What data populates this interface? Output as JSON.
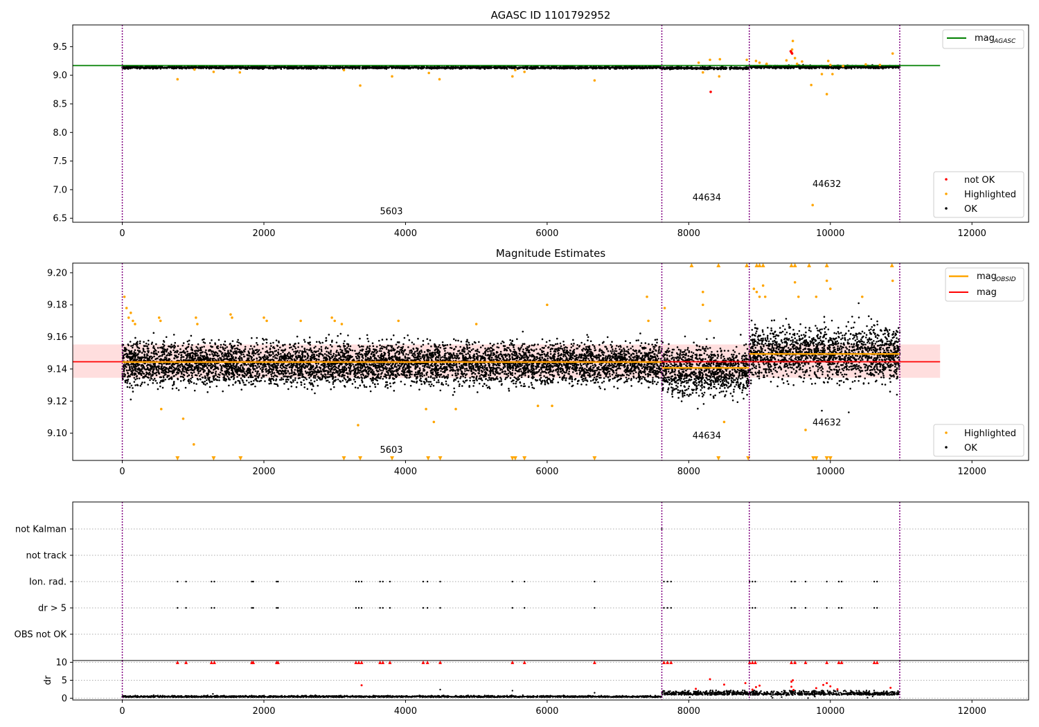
{
  "chart_data": [
    {
      "type": "scatter",
      "title": "AGASC ID 1101792952",
      "xlabel": "",
      "ylabel": "",
      "xlim": [
        -700,
        12800
      ],
      "ylim": [
        6.43,
        9.88
      ],
      "xticks": [
        0,
        2000,
        4000,
        6000,
        8000,
        10000,
        12000
      ],
      "xtick_labels": [
        "0",
        "2000",
        "4000",
        "6000",
        "8000",
        "10000",
        "12000"
      ],
      "yticks": [
        6.5,
        7.0,
        7.5,
        8.0,
        8.5,
        9.0,
        9.5
      ],
      "ytick_labels": [
        "6.5",
        "7.0",
        "7.5",
        "8.0",
        "8.5",
        "9.0",
        "9.5"
      ],
      "grid": false,
      "obsid_boundaries": [
        0,
        7620,
        8855,
        10980
      ],
      "obsid_labels": [
        {
          "text": "5603",
          "x": 3800,
          "y": 6.57
        },
        {
          "text": "44634",
          "x": 8255,
          "y": 6.81
        },
        {
          "text": "44632",
          "x": 9950,
          "y": 7.05
        }
      ],
      "hlines": [
        {
          "name": "magAGASC",
          "y": 9.17,
          "x": [
            -700,
            11550
          ],
          "color": "#008000"
        }
      ],
      "ok_band": {
        "segments": [
          {
            "x0": 0,
            "x1": 7620,
            "y": 9.135,
            "jitter": 0.02
          },
          {
            "x0": 7620,
            "x1": 8855,
            "y": 9.125,
            "jitter": 0.02
          },
          {
            "x0": 8855,
            "x1": 10980,
            "y": 9.145,
            "jitter": 0.025
          }
        ]
      },
      "series": [
        {
          "name": "not OK",
          "color": "#ff0000",
          "points": [
            [
              8310,
              8.71
            ],
            [
              9440,
              9.42
            ],
            [
              9460,
              9.38
            ],
            [
              9450,
              9.4
            ]
          ]
        },
        {
          "name": "Highlighted",
          "color": "#ffa500",
          "points": [
            [
              780,
              8.93
            ],
            [
              1020,
              9.1
            ],
            [
              1290,
              9.06
            ],
            [
              1660,
              9.05
            ],
            [
              3130,
              9.09
            ],
            [
              3360,
              8.82
            ],
            [
              3810,
              8.98
            ],
            [
              4330,
              9.04
            ],
            [
              4480,
              8.93
            ],
            [
              5510,
              8.98
            ],
            [
              5550,
              9.09
            ],
            [
              5680,
              9.06
            ],
            [
              6670,
              8.91
            ],
            [
              8140,
              9.22
            ],
            [
              8200,
              9.05
            ],
            [
              8300,
              9.27
            ],
            [
              8440,
              9.28
            ],
            [
              8430,
              8.98
            ],
            [
              8820,
              9.27
            ],
            [
              8950,
              9.25
            ],
            [
              9000,
              9.22
            ],
            [
              9100,
              9.2
            ],
            [
              9380,
              9.26
            ],
            [
              9470,
              9.6
            ],
            [
              9460,
              9.45
            ],
            [
              9500,
              9.3
            ],
            [
              9530,
              9.2
            ],
            [
              9600,
              9.24
            ],
            [
              9730,
              8.83
            ],
            [
              9750,
              6.73
            ],
            [
              9880,
              9.02
            ],
            [
              9950,
              8.67
            ],
            [
              9970,
              9.25
            ],
            [
              10000,
              9.18
            ],
            [
              10030,
              9.02
            ],
            [
              10180,
              9.16
            ],
            [
              10880,
              9.38
            ],
            [
              10500,
              9.19
            ],
            [
              10700,
              9.18
            ]
          ]
        },
        {
          "name": "OK",
          "color": "#000000",
          "points": []
        }
      ],
      "legend_upper": {
        "position": "upper right",
        "label_main": "mag",
        "label_sub": "AGASC"
      },
      "legend_lower": {
        "position": "lower right",
        "labels": [
          "not OK",
          "Highlighted",
          "OK"
        ]
      }
    },
    {
      "type": "scatter",
      "title": "Magnitude Estimates",
      "xlabel": "",
      "ylabel": "",
      "xlim": [
        -700,
        12800
      ],
      "ylim": [
        9.083,
        9.206
      ],
      "xticks": [
        0,
        2000,
        4000,
        6000,
        8000,
        10000,
        12000
      ],
      "xtick_labels": [
        "0",
        "2000",
        "4000",
        "6000",
        "8000",
        "10000",
        "12000"
      ],
      "yticks": [
        9.1,
        9.12,
        9.14,
        9.16,
        9.18,
        9.2
      ],
      "ytick_labels": [
        "9.10",
        "9.12",
        "9.14",
        "9.16",
        "9.18",
        "9.20"
      ],
      "grid": false,
      "obsid_boundaries": [
        0,
        7620,
        8855,
        10980
      ],
      "obsid_labels": [
        {
          "text": "5603",
          "x": 3800,
          "y": 9.0878
        },
        {
          "text": "44634",
          "x": 8255,
          "y": 9.0965
        },
        {
          "text": "44632",
          "x": 9950,
          "y": 9.1048
        }
      ],
      "mag": {
        "value": 9.1445,
        "x": [
          -700,
          11550
        ],
        "color": "#ff0000",
        "band": [
          9.1345,
          9.1553
        ]
      },
      "mag_obsid": [
        {
          "x0": 0,
          "x1": 7620,
          "y": 9.1443
        },
        {
          "x0": 7620,
          "x1": 8855,
          "y": 9.1407
        },
        {
          "x0": 8855,
          "x1": 10980,
          "y": 9.1494
        }
      ],
      "ok_band": {
        "segments": [
          {
            "x0": 0,
            "x1": 7620,
            "y": 9.1435,
            "jitter": 0.013
          },
          {
            "x0": 7620,
            "x1": 8855,
            "y": 9.139,
            "jitter": 0.015
          },
          {
            "x0": 8855,
            "x1": 10980,
            "y": 9.15,
            "jitter": 0.016
          }
        ]
      },
      "series": [
        {
          "name": "Highlighted",
          "color": "#ffa500",
          "points": [
            [
              30,
              9.185
            ],
            [
              60,
              9.178
            ],
            [
              90,
              9.172
            ],
            [
              120,
              9.175
            ],
            [
              150,
              9.17
            ],
            [
              180,
              9.168
            ],
            [
              520,
              9.172
            ],
            [
              540,
              9.17
            ],
            [
              550,
              9.115
            ],
            [
              860,
              9.109
            ],
            [
              1010,
              9.093
            ],
            [
              1040,
              9.172
            ],
            [
              1060,
              9.168
            ],
            [
              1530,
              9.174
            ],
            [
              1550,
              9.172
            ],
            [
              2000,
              9.172
            ],
            [
              2040,
              9.17
            ],
            [
              2520,
              9.17
            ],
            [
              2960,
              9.172
            ],
            [
              3000,
              9.17
            ],
            [
              3100,
              9.168
            ],
            [
              3330,
              9.105
            ],
            [
              3900,
              9.17
            ],
            [
              4290,
              9.115
            ],
            [
              4400,
              9.107
            ],
            [
              4710,
              9.115
            ],
            [
              5000,
              9.168
            ],
            [
              5870,
              9.117
            ],
            [
              6000,
              9.18
            ],
            [
              6070,
              9.117
            ],
            [
              7410,
              9.185
            ],
            [
              7430,
              9.17
            ],
            [
              7660,
              9.178
            ],
            [
              8200,
              9.188
            ],
            [
              8200,
              9.18
            ],
            [
              8300,
              9.17
            ],
            [
              8500,
              9.107
            ],
            [
              8920,
              9.19
            ],
            [
              8960,
              9.188
            ],
            [
              9000,
              9.185
            ],
            [
              9050,
              9.192
            ],
            [
              9080,
              9.185
            ],
            [
              9500,
              9.194
            ],
            [
              9550,
              9.185
            ],
            [
              9650,
              9.102
            ],
            [
              9800,
              9.185
            ],
            [
              9950,
              9.195
            ],
            [
              10000,
              9.19
            ],
            [
              10450,
              9.185
            ],
            [
              10880,
              9.195
            ]
          ]
        },
        {
          "name": "Highlighted (clipped above)",
          "color": "#ffa500",
          "marker": "triangle-up",
          "points": [
            [
              8040,
              9.206
            ],
            [
              8420,
              9.206
            ],
            [
              8820,
              9.206
            ],
            [
              8960,
              9.206
            ],
            [
              9000,
              9.206
            ],
            [
              9050,
              9.206
            ],
            [
              9450,
              9.206
            ],
            [
              9500,
              9.206
            ],
            [
              9700,
              9.206
            ],
            [
              9950,
              9.206
            ],
            [
              10870,
              9.206
            ]
          ]
        },
        {
          "name": "Highlighted (clipped below)",
          "color": "#ffa500",
          "marker": "triangle-down",
          "points": [
            [
              780,
              9.083
            ],
            [
              1290,
              9.083
            ],
            [
              1670,
              9.083
            ],
            [
              3130,
              9.083
            ],
            [
              3360,
              9.083
            ],
            [
              3810,
              9.083
            ],
            [
              4320,
              9.083
            ],
            [
              4490,
              9.083
            ],
            [
              5510,
              9.083
            ],
            [
              5550,
              9.083
            ],
            [
              5680,
              9.083
            ],
            [
              6670,
              9.083
            ],
            [
              8420,
              9.083
            ],
            [
              8840,
              9.083
            ],
            [
              9760,
              9.083
            ],
            [
              9800,
              9.083
            ],
            [
              9950,
              9.083
            ],
            [
              10000,
              9.083
            ]
          ]
        },
        {
          "name": "OK",
          "color": "#000000",
          "points": [
            [
              120,
              9.121
            ],
            [
              9880,
              9.114
            ],
            [
              10260,
              9.113
            ],
            [
              10940,
              9.124
            ],
            [
              10400,
              9.181
            ]
          ]
        }
      ],
      "legend_upper": {
        "position": "upper right",
        "labels": [
          {
            "main": "mag",
            "sub": "OBSID"
          },
          {
            "main": "mag",
            "sub": ""
          }
        ]
      },
      "legend_lower": {
        "position": "lower right",
        "labels": [
          "Highlighted",
          "OK"
        ]
      }
    },
    {
      "type": "scatter",
      "title": "",
      "xlabel": "",
      "xlim": [
        -700,
        12800
      ],
      "xticks": [
        0,
        2000,
        4000,
        6000,
        8000,
        10000,
        12000
      ],
      "xtick_labels": [
        "0",
        "2000",
        "4000",
        "6000",
        "8000",
        "10000",
        "12000"
      ],
      "flag_rows": [
        "not Kalman",
        "not track",
        "Ion. rad.",
        "dr > 5",
        "OBS not OK"
      ],
      "flag_points_x": [
        780,
        900,
        1260,
        1300,
        1830,
        1850,
        2180,
        2200,
        3300,
        3340,
        3380,
        3640,
        3680,
        3780,
        4250,
        4310,
        4490,
        5510,
        5680,
        6670,
        7650,
        7700,
        7750,
        8860,
        8900,
        8940,
        9450,
        9500,
        9650,
        9950,
        10120,
        10160,
        10620,
        10660
      ],
      "flag_rows_with_points": [
        "Ion. rad.",
        "dr > 5"
      ],
      "not_kalman_points_x": [
        7620
      ],
      "obsid_boundaries": [
        0,
        7620,
        8855,
        10980
      ]
    },
    {
      "type": "scatter",
      "title": "",
      "xlabel": "",
      "ylabel": "dr",
      "xlim": [
        -700,
        12800
      ],
      "ylim": [
        -0.5,
        10.5
      ],
      "xticks": [
        0,
        2000,
        4000,
        6000,
        8000,
        10000,
        12000
      ],
      "xtick_labels": [
        "0",
        "2000",
        "4000",
        "6000",
        "8000",
        "10000",
        "12000"
      ],
      "yticks": [
        0,
        5,
        10
      ],
      "ytick_labels": [
        "0",
        "5",
        "10"
      ],
      "grid": true,
      "obsid_boundaries": [
        0,
        7620,
        8855,
        10980
      ],
      "clipped_marker_value": 10,
      "clipped_x": [
        780,
        900,
        1260,
        1300,
        1830,
        1850,
        2180,
        2200,
        3300,
        3340,
        3380,
        3640,
        3680,
        3780,
        4250,
        4310,
        4490,
        5510,
        5680,
        6670,
        7650,
        7700,
        7750,
        8860,
        8900,
        8940,
        9450,
        9500,
        9650,
        9950,
        10120,
        10160,
        10620,
        10660
      ],
      "series": [
        {
          "name": "OK",
          "color": "#000000",
          "segments": [
            {
              "x0": 0,
              "x1": 7620,
              "y": 0.3,
              "jitter": 0.3
            },
            {
              "x0": 7620,
              "x1": 10980,
              "y": 0.9,
              "jitter": 1.0
            }
          ],
          "points": [
            [
              1280,
              1.2
            ],
            [
              4490,
              2.4
            ],
            [
              5510,
              2.1
            ],
            [
              6670,
              1.5
            ]
          ]
        },
        {
          "name": "not OK",
          "color": "#ff0000",
          "points": [
            [
              3380,
              3.6
            ],
            [
              8100,
              2.6
            ],
            [
              8300,
              5.3
            ],
            [
              8500,
              3.8
            ],
            [
              8800,
              4.2
            ],
            [
              8900,
              2.4
            ],
            [
              8950,
              3.1
            ],
            [
              9000,
              3.5
            ],
            [
              9450,
              4.6
            ],
            [
              9470,
              5.0
            ],
            [
              9450,
              3.2
            ],
            [
              9480,
              2.3
            ],
            [
              9800,
              2.8
            ],
            [
              9900,
              3.7
            ],
            [
              9950,
              4.2
            ],
            [
              10000,
              3.3
            ],
            [
              10100,
              2.5
            ],
            [
              10850,
              2.9
            ]
          ]
        }
      ]
    }
  ]
}
